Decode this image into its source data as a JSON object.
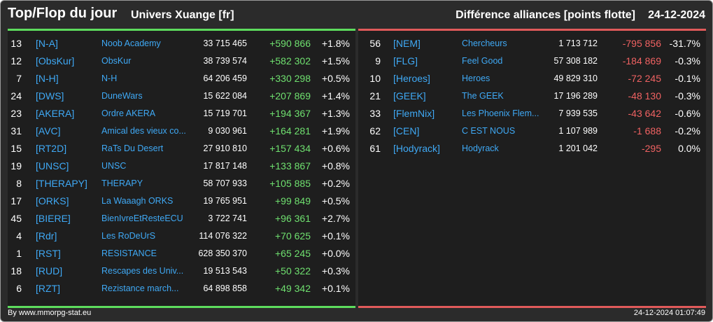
{
  "header": {
    "title": "Top/Flop du jour",
    "universe": "Univers Xuange [fr]",
    "metric": "Différence alliances [points flotte]",
    "date": "24-12-2024"
  },
  "colors": {
    "positive": "#6fe06f",
    "negative": "#f06262",
    "tag": "#3fa9f5",
    "top_border": "#5ddc5d",
    "flop_border": "#e05a5a"
  },
  "top": [
    {
      "rank": "13",
      "tag": "[N-A]",
      "name": "Noob Academy",
      "score": "33 715 465",
      "delta": "+590 866",
      "pct": "+1.8%"
    },
    {
      "rank": "12",
      "tag": "[ObsKur]",
      "name": "ObsKur",
      "score": "38 739 574",
      "delta": "+582 302",
      "pct": "+1.5%"
    },
    {
      "rank": "7",
      "tag": "[N-H]",
      "name": "N-H",
      "score": "64 206 459",
      "delta": "+330 298",
      "pct": "+0.5%"
    },
    {
      "rank": "24",
      "tag": "[DWS]",
      "name": "DuneWars",
      "score": "15 622 084",
      "delta": "+207 869",
      "pct": "+1.4%"
    },
    {
      "rank": "23",
      "tag": "[AKERA]",
      "name": "Ordre AKERA",
      "score": "15 719 701",
      "delta": "+194 367",
      "pct": "+1.3%"
    },
    {
      "rank": "31",
      "tag": "[AVC]",
      "name": "Amical des vieux co...",
      "score": "9 030 961",
      "delta": "+164 281",
      "pct": "+1.9%"
    },
    {
      "rank": "15",
      "tag": "[RT2D]",
      "name": "RaTs Du Desert",
      "score": "27 910 810",
      "delta": "+157 434",
      "pct": "+0.6%"
    },
    {
      "rank": "19",
      "tag": "[UNSC]",
      "name": "UNSC",
      "score": "17 817 148",
      "delta": "+133 867",
      "pct": "+0.8%"
    },
    {
      "rank": "8",
      "tag": "[THERAPY]",
      "name": "THERAPY",
      "score": "58 707 933",
      "delta": "+105 885",
      "pct": "+0.2%"
    },
    {
      "rank": "17",
      "tag": "[ORKS]",
      "name": "La Waaagh ORKS",
      "score": "19 765 951",
      "delta": "+99 849",
      "pct": "+0.5%"
    },
    {
      "rank": "45",
      "tag": "[BIERE]",
      "name": "BienIvreEtResteECU",
      "score": "3 722 741",
      "delta": "+96 361",
      "pct": "+2.7%"
    },
    {
      "rank": "4",
      "tag": "[Rdr]",
      "name": "Les RoDeUrS",
      "score": "114 076 322",
      "delta": "+70 625",
      "pct": "+0.1%"
    },
    {
      "rank": "1",
      "tag": "[RST]",
      "name": "RESISTANCE",
      "score": "628 350 370",
      "delta": "+65 245",
      "pct": "+0.0%"
    },
    {
      "rank": "18",
      "tag": "[RUD]",
      "name": "Rescapes des Univ...",
      "score": "19 513 543",
      "delta": "+50 322",
      "pct": "+0.3%"
    },
    {
      "rank": "6",
      "tag": "[RZT]",
      "name": "Rezistance march...",
      "score": "64 898 858",
      "delta": "+49 342",
      "pct": "+0.1%"
    }
  ],
  "flop": [
    {
      "rank": "56",
      "tag": "[NEM]",
      "name": "Chercheurs",
      "score": "1 713 712",
      "delta": "-795 856",
      "pct": "-31.7%"
    },
    {
      "rank": "9",
      "tag": "[FLG]",
      "name": "Feel Good",
      "score": "57 308 182",
      "delta": "-184 869",
      "pct": "-0.3%"
    },
    {
      "rank": "10",
      "tag": "[Heroes]",
      "name": "Heroes",
      "score": "49 829 310",
      "delta": "-72 245",
      "pct": "-0.1%"
    },
    {
      "rank": "21",
      "tag": "[GEEK]",
      "name": "The GEEK",
      "score": "17 196 289",
      "delta": "-48 130",
      "pct": "-0.3%"
    },
    {
      "rank": "33",
      "tag": "[FlemNix]",
      "name": "Les Phoenix Flem...",
      "score": "7 939 535",
      "delta": "-43 642",
      "pct": "-0.6%"
    },
    {
      "rank": "62",
      "tag": "[CEN]",
      "name": "C EST NOUS",
      "score": "1 107 989",
      "delta": "-1 688",
      "pct": "-0.2%"
    },
    {
      "rank": "61",
      "tag": "[Hodyrack]",
      "name": "Hodyrack",
      "score": "1 201 042",
      "delta": "-295",
      "pct": "0.0%"
    }
  ],
  "footer": {
    "source": "By www.mmorpg-stat.eu",
    "timestamp": "24-12-2024 01:07:49"
  }
}
